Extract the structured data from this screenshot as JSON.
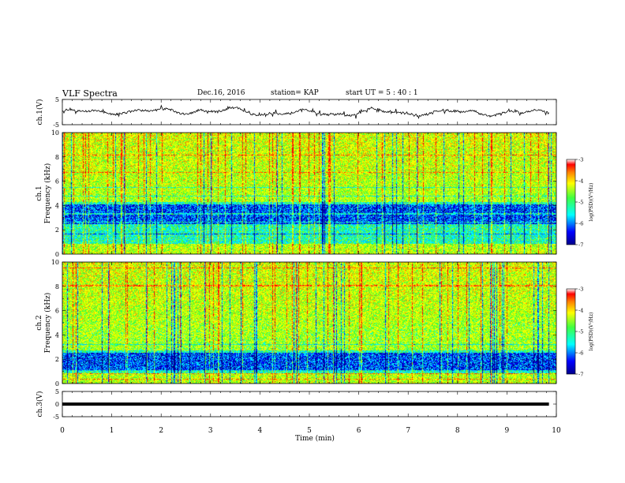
{
  "header": {
    "title": "VLF Spectra",
    "date": "Dec.16, 2016",
    "station": "station= KAP",
    "start": "start  UT  =   5  : 40 : 1"
  },
  "chart_data": [
    {
      "type": "line",
      "ylabel": "ch.1(V)",
      "ylim": [
        -5,
        5
      ],
      "yticks": [
        "5",
        "-5"
      ],
      "xlim": [
        0,
        10
      ],
      "series": [
        {
          "values_description": "noisy waveform around 0 V, amplitude about ±1.5 V"
        }
      ]
    },
    {
      "type": "heatmap",
      "ylabel_top": "ch.1",
      "ylabel": "Frequency (kHz)",
      "ylim": [
        0,
        10
      ],
      "yticks": [
        "0",
        "2",
        "4",
        "6",
        "8",
        "10"
      ],
      "xlim": [
        0,
        10
      ],
      "colorbar": {
        "label": "log(PSD)(V²/Hz)",
        "range": [
          -7,
          -3
        ],
        "ticks": [
          "-3",
          "-4",
          "-5",
          "-6",
          "-7"
        ]
      },
      "colormap": [
        "#00008b",
        "#0000ff",
        "#00bfff",
        "#00ffff",
        "#40ff40",
        "#c0ff00",
        "#ffff00",
        "#ff8000",
        "#ff0000",
        "#ffffff"
      ]
    },
    {
      "type": "heatmap",
      "ylabel_top": "ch.2",
      "ylabel": "Frequency (kHz)",
      "ylim": [
        0,
        10
      ],
      "yticks": [
        "0",
        "2",
        "4",
        "6",
        "8",
        "10"
      ],
      "xlim": [
        0,
        10
      ],
      "colorbar": {
        "label": "log(PSD)(V²/Hz)",
        "range": [
          -7,
          -3
        ],
        "ticks": [
          "-3",
          "-4",
          "-5",
          "-6",
          "-7"
        ]
      }
    },
    {
      "type": "line",
      "ylabel": "ch.3(V)",
      "ylim": [
        -5,
        5
      ],
      "yticks": [
        "5",
        "0",
        "-5"
      ],
      "xlim": [
        0,
        10
      ],
      "series": [
        {
          "values_description": "flat line at about 0 V"
        }
      ]
    }
  ],
  "xaxis": {
    "label": "Time (min)",
    "ticks": [
      "0",
      "1",
      "2",
      "3",
      "4",
      "5",
      "6",
      "7",
      "8",
      "9",
      "10"
    ]
  }
}
